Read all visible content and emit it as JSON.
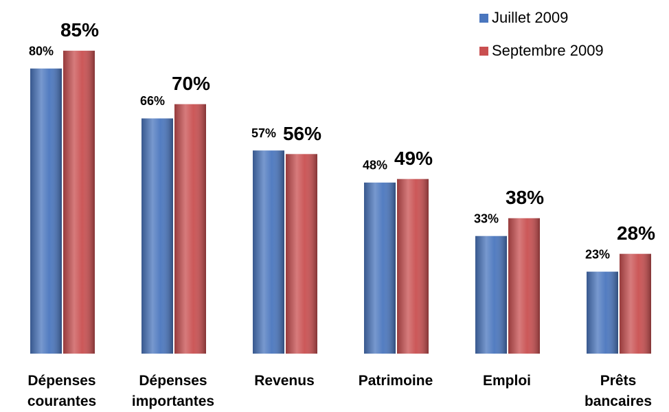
{
  "chart_data": {
    "type": "bar",
    "categories": [
      "Dépenses courantes",
      "Dépenses importantes",
      "Revenus",
      "Patrimoine",
      "Emploi",
      "Prêts bancaires"
    ],
    "series": [
      {
        "name": "Juillet 2009",
        "color": "#4a76be",
        "values": [
          80,
          66,
          57,
          48,
          33,
          23
        ],
        "value_labels": [
          "80%",
          "66%",
          "57%",
          "48%",
          "33%",
          "23%"
        ]
      },
      {
        "name": "Septembre 2009",
        "color": "#c94f50",
        "values": [
          85,
          70,
          56,
          49,
          38,
          28
        ],
        "value_labels": [
          "85%",
          "70%",
          "56%",
          "49%",
          "38%",
          "28%"
        ]
      }
    ],
    "ylim": [
      0,
      100
    ],
    "legend": "top-right"
  }
}
